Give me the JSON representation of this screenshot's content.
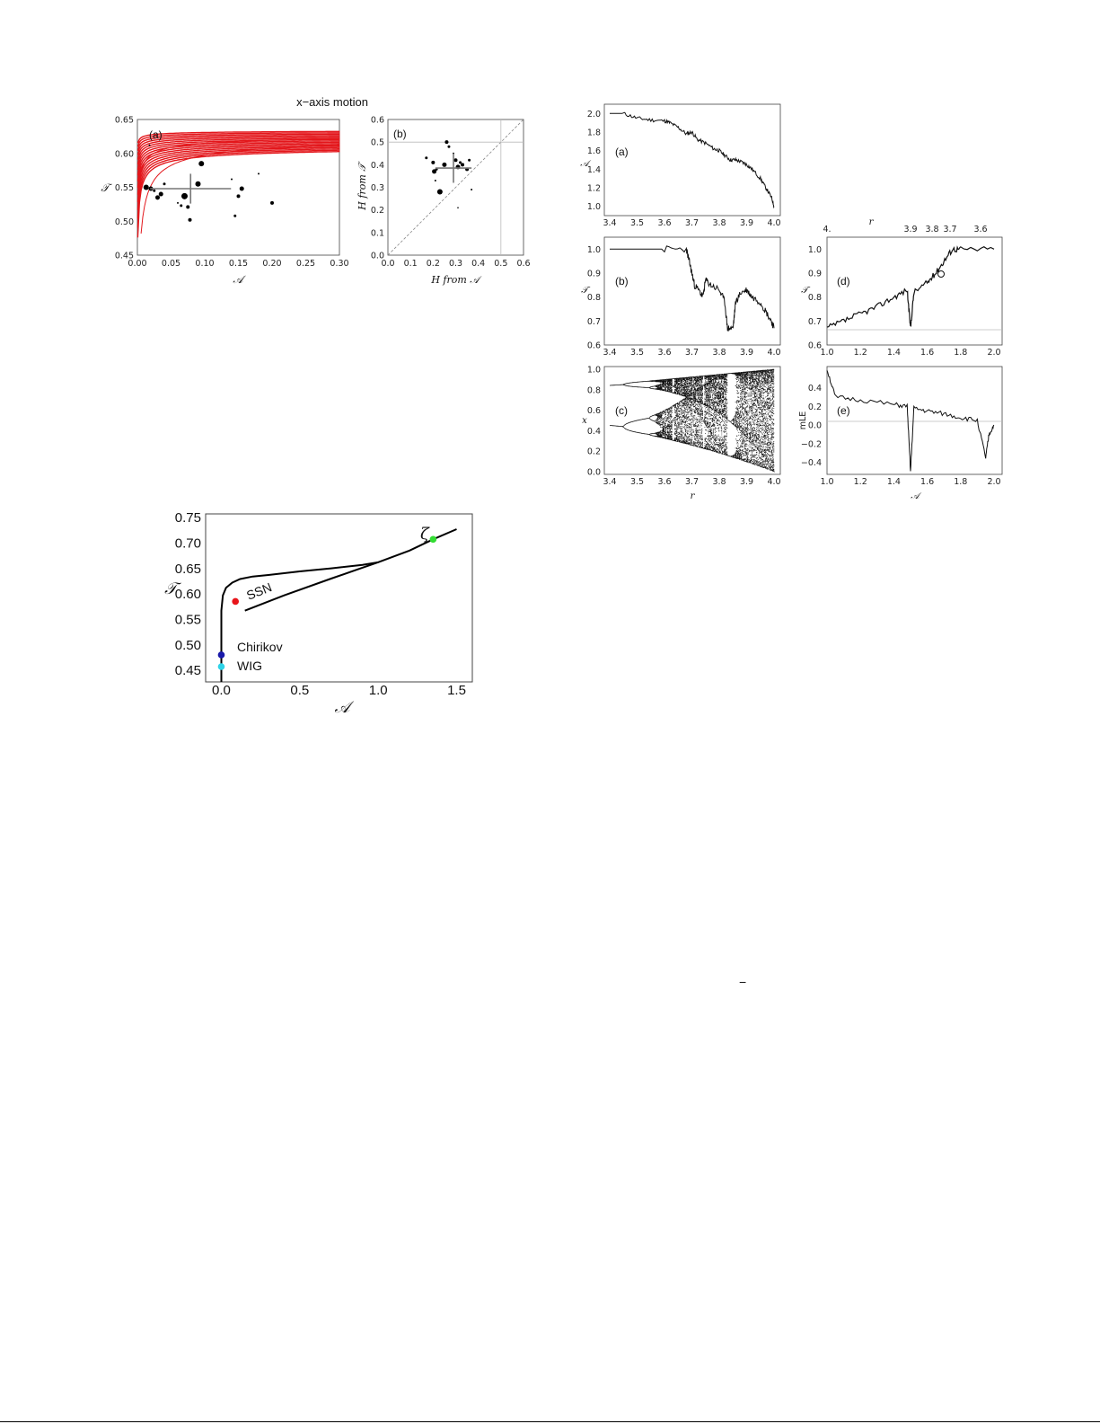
{
  "figure1": {
    "title": "x−axis motion",
    "panel_a": {
      "label": "(a)",
      "xlabel": "𝒜",
      "ylabel": "𝒯",
      "xlim": [
        0,
        0.3
      ],
      "ylim": [
        0.45,
        0.65
      ],
      "xticks": [
        "0.00",
        "0.05",
        "0.10",
        "0.15",
        "0.20",
        "0.25",
        "0.30"
      ],
      "yticks": [
        "0.45",
        "0.50",
        "0.55",
        "0.60",
        "0.65"
      ]
    },
    "panel_b": {
      "label": "(b)",
      "xlabel": "H from 𝒜",
      "ylabel": "H from 𝒯",
      "xlim": [
        0,
        0.6
      ],
      "ylim": [
        0,
        0.6
      ],
      "xticks": [
        "0.0",
        "0.1",
        "0.2",
        "0.3",
        "0.4",
        "0.5",
        "0.6"
      ],
      "yticks": [
        "0.0",
        "0.1",
        "0.2",
        "0.3",
        "0.4",
        "0.5",
        "0.6"
      ]
    }
  },
  "figure2": {
    "panel_a": {
      "label": "(a)",
      "ylabel": "𝒜",
      "xticks": [
        "3.4",
        "3.5",
        "3.6",
        "3.7",
        "3.8",
        "3.9",
        "4.0"
      ],
      "yticks": [
        "1.0",
        "1.2",
        "1.4",
        "1.6",
        "1.8",
        "2.0"
      ]
    },
    "panel_b": {
      "label": "(b)",
      "ylabel": "𝒯",
      "xticks": [
        "3.4",
        "3.5",
        "3.6",
        "3.7",
        "3.8",
        "3.9",
        "4.0"
      ],
      "yticks": [
        "0.6",
        "0.7",
        "0.8",
        "0.9",
        "1.0"
      ]
    },
    "panel_c": {
      "label": "(c)",
      "ylabel": "x",
      "xlabel": "r",
      "xticks": [
        "3.4",
        "3.5",
        "3.6",
        "3.7",
        "3.8",
        "3.9",
        "4.0"
      ],
      "yticks": [
        "0.0",
        "0.2",
        "0.4",
        "0.6",
        "0.8",
        "1.0"
      ]
    },
    "panel_d": {
      "label": "(d)",
      "ylabel": "𝒯",
      "toplabel": "r",
      "xticks": [
        "1.0",
        "1.2",
        "1.4",
        "1.6",
        "1.8",
        "2.0"
      ],
      "topticks": [
        "4.",
        "3.9",
        "3.8",
        "3.7",
        "3.6"
      ],
      "yticks": [
        "0.6",
        "0.7",
        "0.8",
        "0.9",
        "1.0"
      ]
    },
    "panel_e": {
      "label": "(e)",
      "ylabel": "mLE",
      "xlabel": "𝒜",
      "xticks": [
        "1.0",
        "1.2",
        "1.4",
        "1.6",
        "1.8",
        "2.0"
      ],
      "yticks": [
        "−0.4",
        "−0.2",
        "0.0",
        "0.2",
        "0.4"
      ]
    }
  },
  "figure3": {
    "xlabel": "𝒜",
    "ylabel": "𝒯",
    "xticks": [
      "0.0",
      "0.5",
      "1.0",
      "1.5"
    ],
    "yticks": [
      "0.45",
      "0.50",
      "0.55",
      "0.60",
      "0.65",
      "0.70",
      "0.75"
    ],
    "annotations": {
      "ssn": "SSN",
      "chirikov": "Chirikov",
      "wig": "WIG",
      "zeta": "ζ"
    },
    "colors": {
      "ssn": "#e8141a",
      "chirikov": "#1a1aaa",
      "wig": "#2ed3e8",
      "zeta": "#33dd33"
    }
  },
  "stray_mark": "−",
  "chart_data": [
    {
      "type": "scatter",
      "figure": "figure1 panel (a)",
      "xlim": [
        0,
        0.3
      ],
      "ylim": [
        0.45,
        0.65
      ],
      "series": [
        {
          "name": "",
          "points": [
            [
              0.013,
              0.55
            ],
            [
              0.02,
              0.548
            ],
            [
              0.025,
              0.545
            ],
            [
              0.03,
              0.535
            ],
            [
              0.035,
              0.54
            ],
            [
              0.018,
              0.612
            ],
            [
              0.06,
              0.527
            ],
            [
              0.065,
              0.523
            ],
            [
              0.07,
              0.537
            ],
            [
              0.075,
              0.521
            ],
            [
              0.078,
              0.502
            ],
            [
              0.09,
              0.555
            ],
            [
              0.095,
              0.585
            ],
            [
              0.145,
              0.508
            ],
            [
              0.15,
              0.537
            ],
            [
              0.155,
              0.548
            ],
            [
              0.18,
              0.57
            ],
            [
              0.2,
              0.527
            ],
            [
              0.14,
              0.562
            ],
            [
              0.04,
              0.555
            ]
          ]
        }
      ],
      "crosshair": {
        "x": 0.079,
        "y": 0.548,
        "xerr": 0.06,
        "yerr": 0.022
      },
      "curves": "family of red curves T(A) rising toward 0.63"
    },
    {
      "type": "scatter",
      "figure": "figure1 panel (b)",
      "xlim": [
        0,
        0.6
      ],
      "ylim": [
        0,
        0.6
      ],
      "series": [
        {
          "name": "",
          "points": [
            [
              0.17,
              0.43
            ],
            [
              0.2,
              0.41
            ],
            [
              0.205,
              0.37
            ],
            [
              0.215,
              0.38
            ],
            [
              0.23,
              0.28
            ],
            [
              0.25,
              0.4
            ],
            [
              0.26,
              0.5
            ],
            [
              0.27,
              0.48
            ],
            [
              0.29,
              0.45
            ],
            [
              0.3,
              0.42
            ],
            [
              0.31,
              0.39
            ],
            [
              0.32,
              0.41
            ],
            [
              0.33,
              0.4
            ],
            [
              0.35,
              0.38
            ],
            [
              0.36,
              0.42
            ],
            [
              0.37,
              0.29
            ],
            [
              0.21,
              0.33
            ],
            [
              0.31,
              0.21
            ]
          ]
        }
      ],
      "crosshair": {
        "x": 0.29,
        "y": 0.385,
        "xerr": 0.08,
        "yerr": 0.065
      }
    },
    {
      "type": "line",
      "figure": "figure2 panel (a)",
      "xlim": [
        3.4,
        4.0
      ],
      "ylim": [
        0.9,
        2.1
      ],
      "series": [
        {
          "name": "",
          "x": [
            3.4,
            3.45,
            3.5,
            3.55,
            3.6,
            3.62,
            3.65,
            3.68,
            3.7,
            3.72,
            3.75,
            3.78,
            3.8,
            3.82,
            3.84,
            3.86,
            3.88,
            3.9,
            3.92,
            3.95,
            3.97,
            3.99,
            4.0
          ],
          "y": [
            2.0,
            2.0,
            1.95,
            1.93,
            1.92,
            1.9,
            1.85,
            1.78,
            1.8,
            1.72,
            1.68,
            1.62,
            1.6,
            1.55,
            1.5,
            1.5,
            1.48,
            1.45,
            1.4,
            1.3,
            1.2,
            1.1,
            1.0
          ]
        }
      ]
    },
    {
      "type": "line",
      "figure": "figure2 panel (b)",
      "xlim": [
        3.4,
        4.0
      ],
      "ylim": [
        0.6,
        1.05
      ],
      "series": [
        {
          "name": "",
          "x": [
            3.4,
            3.5,
            3.6,
            3.68,
            3.69,
            3.7,
            3.71,
            3.73,
            3.74,
            3.75,
            3.77,
            3.8,
            3.82,
            3.83,
            3.85,
            3.86,
            3.88,
            3.9,
            3.92,
            3.95,
            3.97,
            3.99,
            4.0
          ],
          "y": [
            1.0,
            1.0,
            1.0,
            1.0,
            0.95,
            0.9,
            0.85,
            0.82,
            0.8,
            0.87,
            0.85,
            0.83,
            0.78,
            0.67,
            0.67,
            0.78,
            0.82,
            0.83,
            0.8,
            0.78,
            0.74,
            0.7,
            0.67
          ]
        }
      ]
    },
    {
      "type": "scatter",
      "figure": "figure2 panel (c)",
      "xlim": [
        3.4,
        4.0
      ],
      "ylim": [
        0.0,
        1.0
      ],
      "series": [
        {
          "name": "",
          "description": "logistic map bifurcation diagram x vs r"
        }
      ]
    },
    {
      "type": "line",
      "figure": "figure2 panel (d)",
      "xlim": [
        1.0,
        2.0
      ],
      "ylim": [
        0.6,
        1.05
      ],
      "series": [
        {
          "name": "",
          "x": [
            1.0,
            1.1,
            1.2,
            1.3,
            1.4,
            1.48,
            1.5,
            1.52,
            1.6,
            1.65,
            1.7,
            1.75,
            1.8,
            2.0
          ],
          "y": [
            0.67,
            0.7,
            0.73,
            0.76,
            0.8,
            0.83,
            0.67,
            0.82,
            0.86,
            0.9,
            0.95,
            1.0,
            1.0,
            1.0
          ]
        }
      ]
    },
    {
      "type": "line",
      "figure": "figure2 panel (e)",
      "xlim": [
        1.0,
        2.0
      ],
      "ylim": [
        -0.5,
        0.6
      ],
      "series": [
        {
          "name": "",
          "x": [
            1.0,
            1.05,
            1.2,
            1.4,
            1.48,
            1.5,
            1.52,
            1.6,
            1.7,
            1.8,
            1.9,
            1.95,
            1.97,
            2.0
          ],
          "y": [
            0.6,
            0.3,
            0.27,
            0.22,
            0.2,
            -0.5,
            0.18,
            0.15,
            0.12,
            0.08,
            0.05,
            -0.35,
            -0.1,
            0.0
          ]
        }
      ]
    },
    {
      "type": "line",
      "figure": "figure3",
      "xlim": [
        -0.1,
        1.6
      ],
      "ylim": [
        0.43,
        0.76
      ],
      "series": [
        {
          "name": "",
          "x": [
            0.0,
            0.0,
            0.0,
            0.01,
            0.03,
            0.07,
            0.12,
            0.2,
            0.3,
            0.5,
            0.7,
            0.9,
            1.0
          ],
          "y": [
            0.43,
            0.5,
            0.57,
            0.6,
            0.615,
            0.625,
            0.632,
            0.637,
            0.64,
            0.647,
            0.653,
            0.66,
            0.665
          ]
        },
        {
          "name": "",
          "x": [
            0.15,
            0.4,
            0.7,
            1.0,
            1.2,
            1.35,
            1.5
          ],
          "y": [
            0.57,
            0.6,
            0.633,
            0.665,
            0.688,
            0.71,
            0.73
          ]
        }
      ],
      "points": [
        {
          "name": "SSN",
          "x": 0.09,
          "y": 0.588
        },
        {
          "name": "Chirikov",
          "x": 0.0,
          "y": 0.483
        },
        {
          "name": "WIG",
          "x": 0.0,
          "y": 0.46
        },
        {
          "name": "ζ",
          "x": 1.35,
          "y": 0.71
        }
      ]
    }
  ]
}
